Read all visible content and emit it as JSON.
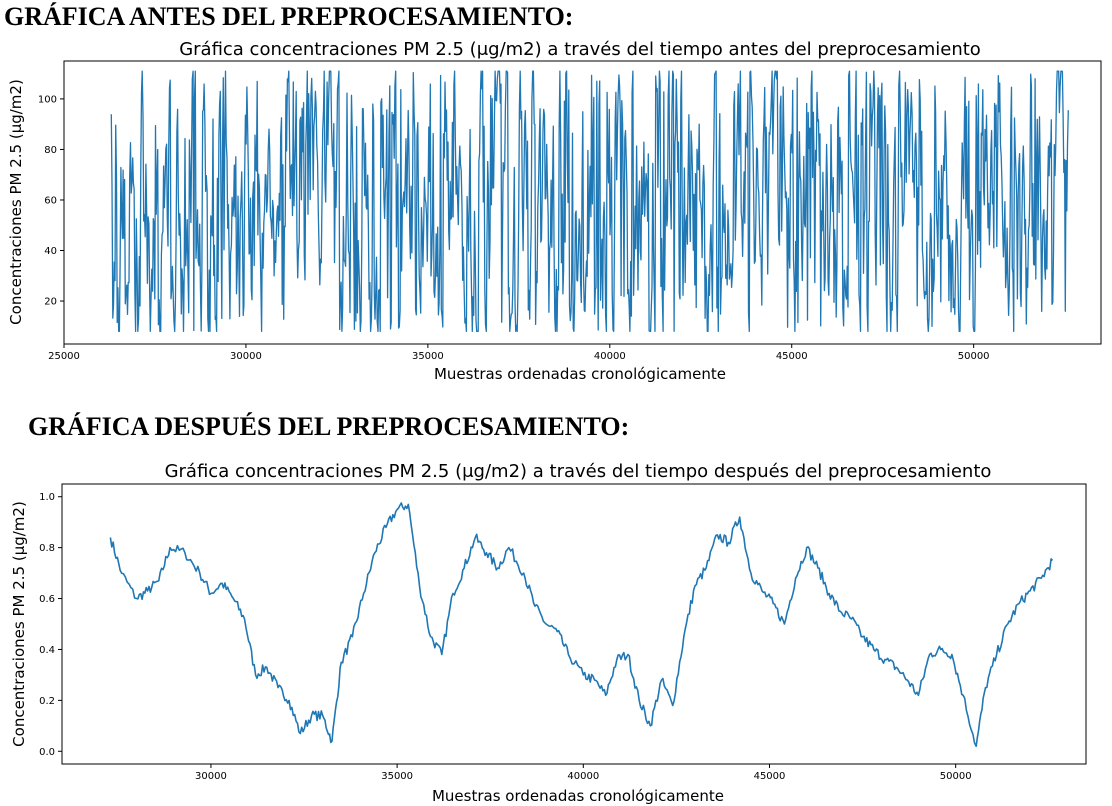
{
  "headings": {
    "before": "GRÁFICA ANTES DEL PREPROCESAMIENTO:",
    "after": "GRÁFICA DESPUÉS DEL PREPROCESAMIENTO:"
  },
  "chart_data": [
    {
      "type": "line",
      "title": "Gráfica concentraciones PM 2.5 (μg/m2) a través del tiempo antes del preprocesamiento",
      "xlabel": "Muestras ordenadas cronológicamente",
      "ylabel": "Concentraciones PM 2.5 (μg/m2)",
      "xlim": [
        25000,
        53500
      ],
      "ylim": [
        3,
        115
      ],
      "xticks": [
        25000,
        30000,
        35000,
        40000,
        45000,
        50000
      ],
      "yticks": [
        20,
        40,
        60,
        80,
        100
      ],
      "grid": false,
      "color": "#1f77b4",
      "series": [
        {
          "x_range": [
            26300,
            52600
          ],
          "n_points": 1300,
          "value_min": 8,
          "value_max": 111,
          "note_values_shown": "dense noisy signal ranging roughly 8 to 111"
        }
      ]
    },
    {
      "type": "line",
      "title": "Gráfica concentraciones PM 2.5 (μg/m2) a través del tiempo después del preprocesamiento",
      "xlabel": "Muestras ordenadas cronológicamente",
      "ylabel": "Concentraciones PM 2.5 (μg/m2)",
      "xlim": [
        26000,
        53500
      ],
      "ylim": [
        -0.05,
        1.05
      ],
      "xticks": [
        30000,
        35000,
        40000,
        45000,
        50000
      ],
      "yticks": [
        0.0,
        0.2,
        0.4,
        0.6,
        0.8,
        1.0
      ],
      "grid": false,
      "color": "#1f77b4",
      "series": [
        {
          "x": [
            27300,
            27600,
            28000,
            28300,
            28600,
            28900,
            29300,
            29700,
            30000,
            30300,
            30600,
            30900,
            31200,
            31500,
            31800,
            32100,
            32400,
            32700,
            33000,
            33250,
            33500,
            33800,
            34100,
            34400,
            34700,
            35000,
            35300,
            35600,
            35900,
            36200,
            36500,
            36800,
            37100,
            37400,
            37700,
            38000,
            38400,
            38700,
            39000,
            39300,
            39600,
            40000,
            40300,
            40600,
            40900,
            41200,
            41500,
            41800,
            42100,
            42400,
            42700,
            43000,
            43300,
            43600,
            43900,
            44200,
            44500,
            44800,
            45100,
            45400,
            45700,
            46000,
            46300,
            46600,
            46900,
            47200,
            47500,
            47800,
            48100,
            48400,
            48700,
            49000,
            49300,
            49600,
            49900,
            50200,
            50550,
            50800,
            51100,
            51400,
            51700,
            52000,
            52300,
            52600
          ],
          "y": [
            0.84,
            0.7,
            0.6,
            0.63,
            0.67,
            0.8,
            0.78,
            0.7,
            0.62,
            0.66,
            0.6,
            0.52,
            0.3,
            0.33,
            0.25,
            0.2,
            0.07,
            0.14,
            0.14,
            0.04,
            0.35,
            0.45,
            0.62,
            0.78,
            0.88,
            0.95,
            0.97,
            0.65,
            0.45,
            0.38,
            0.62,
            0.72,
            0.84,
            0.78,
            0.72,
            0.8,
            0.7,
            0.57,
            0.5,
            0.47,
            0.38,
            0.3,
            0.28,
            0.22,
            0.36,
            0.38,
            0.2,
            0.1,
            0.28,
            0.18,
            0.45,
            0.65,
            0.72,
            0.85,
            0.82,
            0.92,
            0.7,
            0.63,
            0.58,
            0.5,
            0.68,
            0.8,
            0.72,
            0.62,
            0.55,
            0.52,
            0.45,
            0.4,
            0.36,
            0.33,
            0.28,
            0.22,
            0.38,
            0.4,
            0.38,
            0.22,
            0.02,
            0.25,
            0.38,
            0.5,
            0.58,
            0.63,
            0.68,
            0.75
          ]
        }
      ]
    }
  ]
}
